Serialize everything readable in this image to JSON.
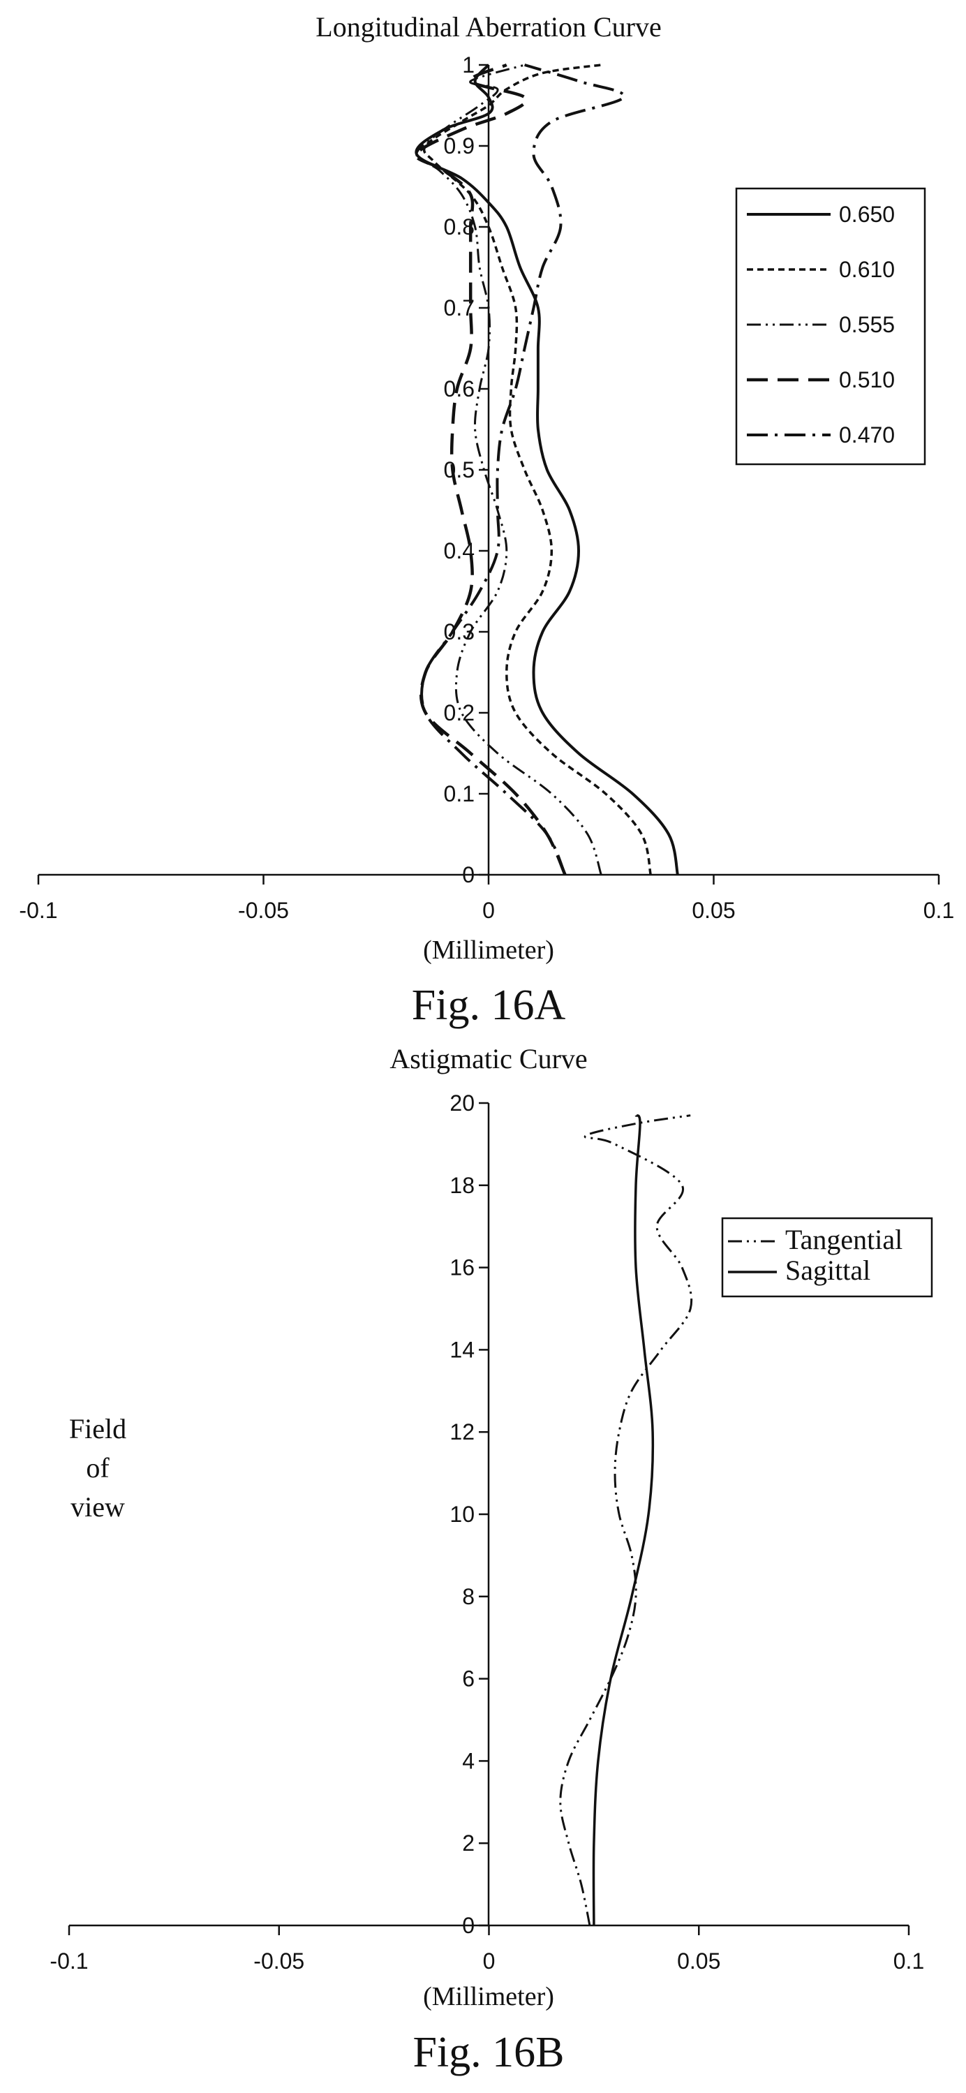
{
  "chart_data": [
    {
      "type": "line",
      "title": "Longitudinal Aberration Curve",
      "xlabel": "(Millimeter)",
      "caption": "Fig. 16A",
      "xlim": [
        -0.1,
        0.1
      ],
      "ylim": [
        0,
        1
      ],
      "x_ticks": [
        "-0.1",
        "-0.05",
        "0",
        "0.05",
        "0.1"
      ],
      "y_ticks": [
        "0",
        "0.1",
        "0.2",
        "0.3",
        "0.4",
        "0.5",
        "0.6",
        "0.7",
        "0.8",
        "0.9",
        "1"
      ],
      "grid": false,
      "legend_position": "right",
      "series": [
        {
          "name": "0.650",
          "style": "solid",
          "points": [
            [
              0.042,
              0
            ],
            [
              0.04,
              0.05
            ],
            [
              0.032,
              0.1
            ],
            [
              0.02,
              0.15
            ],
            [
              0.012,
              0.2
            ],
            [
              0.01,
              0.25
            ],
            [
              0.012,
              0.3
            ],
            [
              0.018,
              0.35
            ],
            [
              0.02,
              0.4
            ],
            [
              0.018,
              0.45
            ],
            [
              0.013,
              0.5
            ],
            [
              0.011,
              0.55
            ],
            [
              0.011,
              0.6
            ],
            [
              0.011,
              0.65
            ],
            [
              0.011,
              0.7
            ],
            [
              0.007,
              0.75
            ],
            [
              0.004,
              0.8
            ],
            [
              0.0,
              0.83
            ],
            [
              -0.006,
              0.86
            ],
            [
              -0.016,
              0.89
            ],
            [
              -0.01,
              0.92
            ],
            [
              0.0,
              0.94
            ],
            [
              0.0,
              0.96
            ],
            [
              -0.003,
              0.98
            ],
            [
              0.0,
              1.0
            ]
          ]
        },
        {
          "name": "0.610",
          "style": "dashed",
          "points": [
            [
              0.036,
              0
            ],
            [
              0.034,
              0.05
            ],
            [
              0.026,
              0.1
            ],
            [
              0.014,
              0.15
            ],
            [
              0.006,
              0.2
            ],
            [
              0.004,
              0.25
            ],
            [
              0.006,
              0.3
            ],
            [
              0.012,
              0.35
            ],
            [
              0.014,
              0.4
            ],
            [
              0.012,
              0.45
            ],
            [
              0.008,
              0.5
            ],
            [
              0.005,
              0.55
            ],
            [
              0.005,
              0.6
            ],
            [
              0.006,
              0.65
            ],
            [
              0.006,
              0.7
            ],
            [
              0.003,
              0.75
            ],
            [
              0.0,
              0.8
            ],
            [
              -0.004,
              0.84
            ],
            [
              -0.012,
              0.88
            ],
            [
              -0.014,
              0.9
            ],
            [
              -0.006,
              0.93
            ],
            [
              0.0,
              0.95
            ],
            [
              0.004,
              0.97
            ],
            [
              0.012,
              0.99
            ],
            [
              0.025,
              1.0
            ]
          ]
        },
        {
          "name": "0.555",
          "style": "dashdotdot",
          "points": [
            [
              0.025,
              0
            ],
            [
              0.022,
              0.05
            ],
            [
              0.014,
              0.1
            ],
            [
              0.002,
              0.15
            ],
            [
              -0.006,
              0.2
            ],
            [
              -0.007,
              0.25
            ],
            [
              -0.004,
              0.3
            ],
            [
              0.002,
              0.35
            ],
            [
              0.004,
              0.4
            ],
            [
              0.002,
              0.45
            ],
            [
              -0.001,
              0.5
            ],
            [
              -0.003,
              0.55
            ],
            [
              -0.002,
              0.6
            ],
            [
              0.0,
              0.65
            ],
            [
              0.0,
              0.7
            ],
            [
              -0.002,
              0.75
            ],
            [
              -0.003,
              0.8
            ],
            [
              -0.006,
              0.84
            ],
            [
              -0.011,
              0.87
            ],
            [
              -0.016,
              0.89
            ],
            [
              -0.01,
              0.92
            ],
            [
              -0.002,
              0.95
            ],
            [
              0.002,
              0.97
            ],
            [
              -0.004,
              0.98
            ],
            [
              0.008,
              1.0
            ]
          ]
        },
        {
          "name": "0.510",
          "style": "longdash",
          "points": [
            [
              0.017,
              0
            ],
            [
              0.013,
              0.05
            ],
            [
              0.006,
              0.1
            ],
            [
              -0.004,
              0.15
            ],
            [
              -0.014,
              0.2
            ],
            [
              -0.014,
              0.25
            ],
            [
              -0.008,
              0.3
            ],
            [
              -0.004,
              0.35
            ],
            [
              -0.004,
              0.4
            ],
            [
              -0.006,
              0.45
            ],
            [
              -0.008,
              0.5
            ],
            [
              -0.008,
              0.55
            ],
            [
              -0.007,
              0.6
            ],
            [
              -0.004,
              0.65
            ],
            [
              -0.004,
              0.7
            ],
            [
              -0.004,
              0.75
            ],
            [
              -0.004,
              0.8
            ],
            [
              -0.004,
              0.84
            ],
            [
              -0.01,
              0.87
            ],
            [
              -0.016,
              0.89
            ],
            [
              -0.006,
              0.92
            ],
            [
              0.004,
              0.94
            ],
            [
              0.008,
              0.96
            ],
            [
              -0.004,
              0.98
            ],
            [
              0.004,
              1.0
            ]
          ]
        },
        {
          "name": "0.470",
          "style": "dashdot",
          "points": [
            [
              0.017,
              0
            ],
            [
              0.013,
              0.05
            ],
            [
              0.004,
              0.1
            ],
            [
              -0.006,
              0.15
            ],
            [
              -0.014,
              0.2
            ],
            [
              -0.014,
              0.25
            ],
            [
              -0.008,
              0.3
            ],
            [
              -0.002,
              0.35
            ],
            [
              0.002,
              0.4
            ],
            [
              0.002,
              0.45
            ],
            [
              0.002,
              0.5
            ],
            [
              0.003,
              0.55
            ],
            [
              0.006,
              0.6
            ],
            [
              0.008,
              0.65
            ],
            [
              0.01,
              0.7
            ],
            [
              0.012,
              0.75
            ],
            [
              0.016,
              0.8
            ],
            [
              0.014,
              0.85
            ],
            [
              0.01,
              0.89
            ],
            [
              0.014,
              0.93
            ],
            [
              0.03,
              0.96
            ],
            [
              0.02,
              0.98
            ],
            [
              0.008,
              1.0
            ]
          ]
        }
      ]
    },
    {
      "type": "line",
      "title": "Astigmatic Curve",
      "xlabel": "(Millimeter)",
      "ylabel": "Field of view",
      "caption": "Fig. 16B",
      "xlim": [
        -0.1,
        0.1
      ],
      "ylim": [
        0,
        20
      ],
      "x_ticks": [
        "-0.1",
        "-0.05",
        "0",
        "0.05",
        "0.1"
      ],
      "y_ticks": [
        "0",
        "2",
        "4",
        "6",
        "8",
        "10",
        "12",
        "14",
        "16",
        "18",
        "20"
      ],
      "grid": false,
      "legend_position": "top-right",
      "series": [
        {
          "name": "Tangential",
          "style": "dashdotdot",
          "points": [
            [
              0.024,
              0
            ],
            [
              0.022,
              1
            ],
            [
              0.019,
              2
            ],
            [
              0.017,
              3
            ],
            [
              0.019,
              4
            ],
            [
              0.024,
              5
            ],
            [
              0.029,
              6
            ],
            [
              0.033,
              7
            ],
            [
              0.035,
              8
            ],
            [
              0.034,
              9
            ],
            [
              0.031,
              10
            ],
            [
              0.03,
              11
            ],
            [
              0.031,
              12
            ],
            [
              0.034,
              13
            ],
            [
              0.041,
              14
            ],
            [
              0.048,
              15
            ],
            [
              0.046,
              16
            ],
            [
              0.04,
              17
            ],
            [
              0.046,
              18
            ],
            [
              0.03,
              19
            ],
            [
              0.023,
              19.2
            ],
            [
              0.035,
              19.5
            ],
            [
              0.048,
              19.7
            ]
          ]
        },
        {
          "name": "Sagittal",
          "style": "solid",
          "points": [
            [
              0.025,
              0
            ],
            [
              0.025,
              2
            ],
            [
              0.026,
              4
            ],
            [
              0.029,
              6
            ],
            [
              0.034,
              8
            ],
            [
              0.038,
              10
            ],
            [
              0.039,
              12
            ],
            [
              0.037,
              14
            ],
            [
              0.035,
              16
            ],
            [
              0.035,
              18
            ],
            [
              0.036,
              19.5
            ],
            [
              0.035,
              19.7
            ]
          ]
        }
      ]
    }
  ]
}
